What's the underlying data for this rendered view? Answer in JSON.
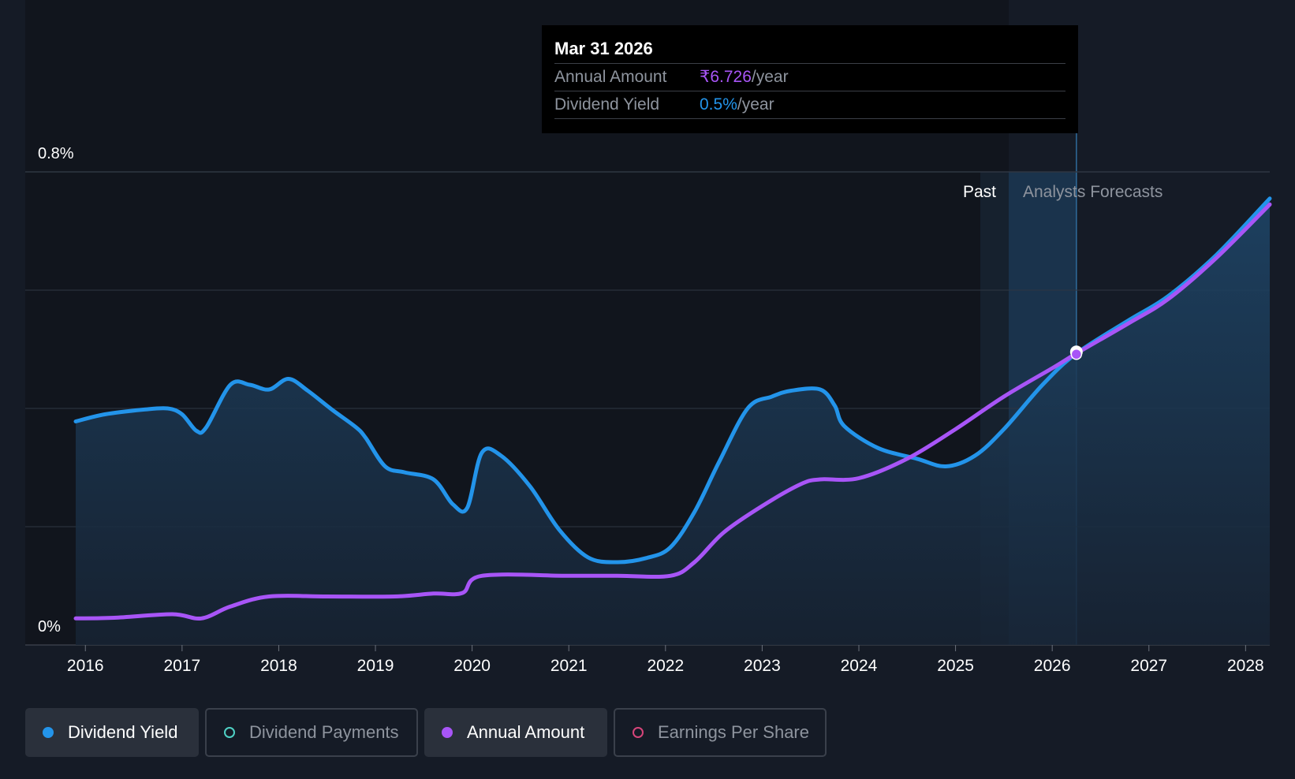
{
  "tooltip": {
    "date": "Mar 31 2026",
    "rows": [
      {
        "label": "Annual Amount",
        "value": "₹6.726",
        "unit": "/year"
      },
      {
        "label": "Dividend Yield",
        "value": "0.5%",
        "unit": "/year"
      }
    ]
  },
  "legend": [
    {
      "label": "Dividend Yield",
      "color": "#2394ea",
      "active": true,
      "filled": true
    },
    {
      "label": "Dividend Payments",
      "color": "#4fd1c5",
      "active": false,
      "filled": false
    },
    {
      "label": "Annual Amount",
      "color": "#a855f7",
      "active": true,
      "filled": true
    },
    {
      "label": "Earnings Per Share",
      "color": "#d6457a",
      "active": false,
      "filled": false
    }
  ],
  "chart_data": {
    "type": "line",
    "y_axis_labels": [
      "0.8%",
      "0%"
    ],
    "ylim": [
      0,
      0.8
    ],
    "xlim": [
      2015.9,
      2028.25
    ],
    "x_tick_labels": [
      "2016",
      "2017",
      "2018",
      "2019",
      "2020",
      "2021",
      "2022",
      "2023",
      "2024",
      "2025",
      "2026",
      "2027",
      "2028"
    ],
    "x_ticks": [
      2016,
      2017,
      2018,
      2019,
      2020,
      2021,
      2022,
      2023,
      2024,
      2025,
      2026,
      2027,
      2028
    ],
    "grid": true,
    "region_labels": {
      "past": "Past",
      "forecast": "Analysts Forecasts"
    },
    "past_end": 2025.55,
    "highlight_x": 2026.25,
    "series": [
      {
        "name": "Dividend Yield",
        "unit": "%",
        "color": "#2394ea",
        "area": true,
        "points": [
          [
            2015.9,
            0.378
          ],
          [
            2016.2,
            0.39
          ],
          [
            2016.6,
            0.398
          ],
          [
            2016.85,
            0.4
          ],
          [
            2017.0,
            0.39
          ],
          [
            2017.15,
            0.362
          ],
          [
            2017.25,
            0.368
          ],
          [
            2017.5,
            0.44
          ],
          [
            2017.7,
            0.44
          ],
          [
            2017.9,
            0.432
          ],
          [
            2018.1,
            0.45
          ],
          [
            2018.3,
            0.43
          ],
          [
            2018.55,
            0.398
          ],
          [
            2018.8,
            0.368
          ],
          [
            2018.9,
            0.35
          ],
          [
            2019.1,
            0.302
          ],
          [
            2019.3,
            0.292
          ],
          [
            2019.6,
            0.28
          ],
          [
            2019.8,
            0.238
          ],
          [
            2019.95,
            0.232
          ],
          [
            2020.1,
            0.325
          ],
          [
            2020.3,
            0.32
          ],
          [
            2020.6,
            0.268
          ],
          [
            2020.9,
            0.195
          ],
          [
            2021.2,
            0.148
          ],
          [
            2021.5,
            0.14
          ],
          [
            2021.8,
            0.147
          ],
          [
            2022.05,
            0.165
          ],
          [
            2022.3,
            0.225
          ],
          [
            2022.55,
            0.308
          ],
          [
            2022.85,
            0.4
          ],
          [
            2023.1,
            0.42
          ],
          [
            2023.3,
            0.43
          ],
          [
            2023.6,
            0.432
          ],
          [
            2023.75,
            0.405
          ],
          [
            2023.85,
            0.37
          ],
          [
            2024.2,
            0.333
          ],
          [
            2024.6,
            0.315
          ],
          [
            2024.9,
            0.302
          ],
          [
            2025.2,
            0.32
          ],
          [
            2025.5,
            0.365
          ],
          [
            2025.9,
            0.44
          ],
          [
            2026.25,
            0.493
          ],
          [
            2026.8,
            0.55
          ],
          [
            2027.2,
            0.59
          ],
          [
            2027.7,
            0.66
          ],
          [
            2028.25,
            0.755
          ]
        ]
      },
      {
        "name": "Annual Amount",
        "unit": "₹",
        "color": "#a855f7",
        "area": false,
        "points": [
          [
            2015.9,
            0.045
          ],
          [
            2016.3,
            0.046
          ],
          [
            2016.9,
            0.052
          ],
          [
            2017.2,
            0.045
          ],
          [
            2017.5,
            0.065
          ],
          [
            2017.9,
            0.082
          ],
          [
            2018.5,
            0.082
          ],
          [
            2019.2,
            0.082
          ],
          [
            2019.6,
            0.087
          ],
          [
            2019.9,
            0.088
          ],
          [
            2020.1,
            0.117
          ],
          [
            2021.0,
            0.117
          ],
          [
            2021.5,
            0.117
          ],
          [
            2022.05,
            0.117
          ],
          [
            2022.3,
            0.14
          ],
          [
            2022.6,
            0.19
          ],
          [
            2023.0,
            0.235
          ],
          [
            2023.4,
            0.272
          ],
          [
            2023.6,
            0.28
          ],
          [
            2024.0,
            0.282
          ],
          [
            2024.5,
            0.315
          ],
          [
            2025.0,
            0.365
          ],
          [
            2025.5,
            0.42
          ],
          [
            2026.0,
            0.468
          ],
          [
            2026.25,
            0.493
          ],
          [
            2026.8,
            0.545
          ],
          [
            2027.2,
            0.585
          ],
          [
            2027.7,
            0.655
          ],
          [
            2028.25,
            0.745
          ]
        ]
      }
    ]
  }
}
